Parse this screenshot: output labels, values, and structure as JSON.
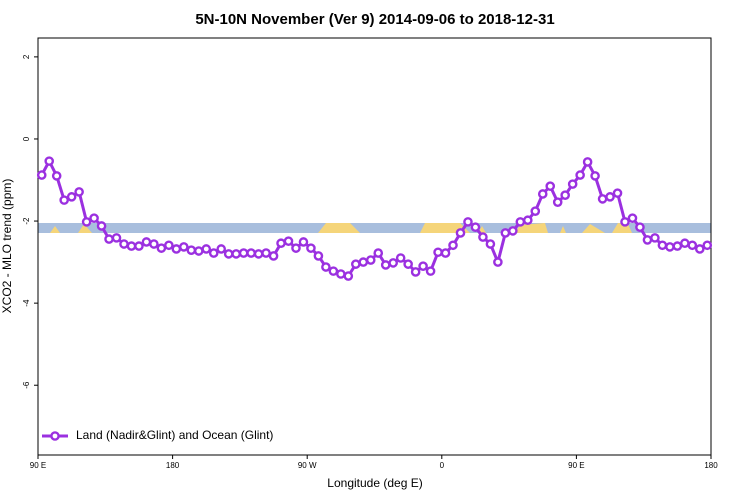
{
  "chart_data": {
    "type": "line",
    "title": "5N-10N November (Ver 9)   2014-09-06 to 2018-12-31",
    "x_label": "Longitude (deg E)",
    "y_label": "XCO2 - MLO trend (ppm)",
    "xlim": [
      90,
      540
    ],
    "xticks": [
      {
        "value": 90,
        "label": "90 E"
      },
      {
        "value": 180,
        "label": "180"
      },
      {
        "value": 270,
        "label": "90 W"
      },
      {
        "value": 360,
        "label": "0"
      },
      {
        "value": 450,
        "label": "90 E"
      },
      {
        "value": 540,
        "label": "180"
      }
    ],
    "ylim": [
      -7.7,
      2.46
    ],
    "yticks": [
      2,
      0,
      -2,
      -4,
      -6
    ],
    "grid": false,
    "legend": "bottomleft",
    "x": [
      92.5,
      97.5,
      102.5,
      107.5,
      112.5,
      117.5,
      122.5,
      127.5,
      132.5,
      137.5,
      142.5,
      147.5,
      152.5,
      157.5,
      162.5,
      167.5,
      172.5,
      177.5,
      182.5,
      187.5,
      192.5,
      197.5,
      202.5,
      207.5,
      212.5,
      217.5,
      222.5,
      227.5,
      232.5,
      237.5,
      242.5,
      247.5,
      252.5,
      257.5,
      262.5,
      267.5,
      272.5,
      277.5,
      282.5,
      287.5,
      292.5,
      297.5,
      302.5,
      307.5,
      312.5,
      317.5,
      322.5,
      327.5,
      332.5,
      337.5,
      342.5,
      347.5,
      352.5,
      357.5,
      362.5,
      367.5,
      372.5,
      377.5,
      382.5,
      387.5,
      392.5,
      397.5,
      402.5,
      407.5,
      412.5,
      417.5,
      422.5,
      427.5,
      432.5,
      437.5,
      442.5,
      447.5,
      452.5,
      457.5,
      462.5,
      467.5,
      472.5,
      477.5,
      482.5,
      487.5,
      492.5,
      497.5,
      502.5,
      507.5,
      512.5,
      517.5,
      522.5,
      527.5,
      532.5,
      537.5
    ],
    "series": [
      {
        "name": "Land (Nadir&Glint) and Ocean (Glint)",
        "color": "#9b30e0",
        "values": [
          -0.88,
          -0.54,
          -0.9,
          -1.49,
          -1.41,
          -1.29,
          -2.02,
          -1.93,
          -2.12,
          -2.44,
          -2.41,
          -2.56,
          -2.61,
          -2.61,
          -2.51,
          -2.56,
          -2.66,
          -2.59,
          -2.68,
          -2.63,
          -2.71,
          -2.73,
          -2.68,
          -2.78,
          -2.68,
          -2.8,
          -2.8,
          -2.78,
          -2.78,
          -2.8,
          -2.78,
          -2.85,
          -2.54,
          -2.49,
          -2.66,
          -2.51,
          -2.66,
          -2.85,
          -3.12,
          -3.22,
          -3.29,
          -3.34,
          -3.05,
          -3.0,
          -2.95,
          -2.78,
          -3.07,
          -3.02,
          -2.9,
          -3.05,
          -3.24,
          -3.1,
          -3.22,
          -2.76,
          -2.78,
          -2.59,
          -2.29,
          -2.02,
          -2.15,
          -2.39,
          -2.56,
          -3.0,
          -2.29,
          -2.24,
          -2.02,
          -1.98,
          -1.76,
          -1.34,
          -1.15,
          -1.54,
          -1.37,
          -1.1,
          -0.88,
          -0.56,
          -0.9,
          -1.46,
          -1.41,
          -1.32,
          -2.02,
          -1.93,
          -2.15,
          -2.46,
          -2.41,
          -2.59,
          -2.63,
          -2.61,
          -2.54,
          -2.59,
          -2.68,
          -2.59
        ]
      }
    ]
  }
}
